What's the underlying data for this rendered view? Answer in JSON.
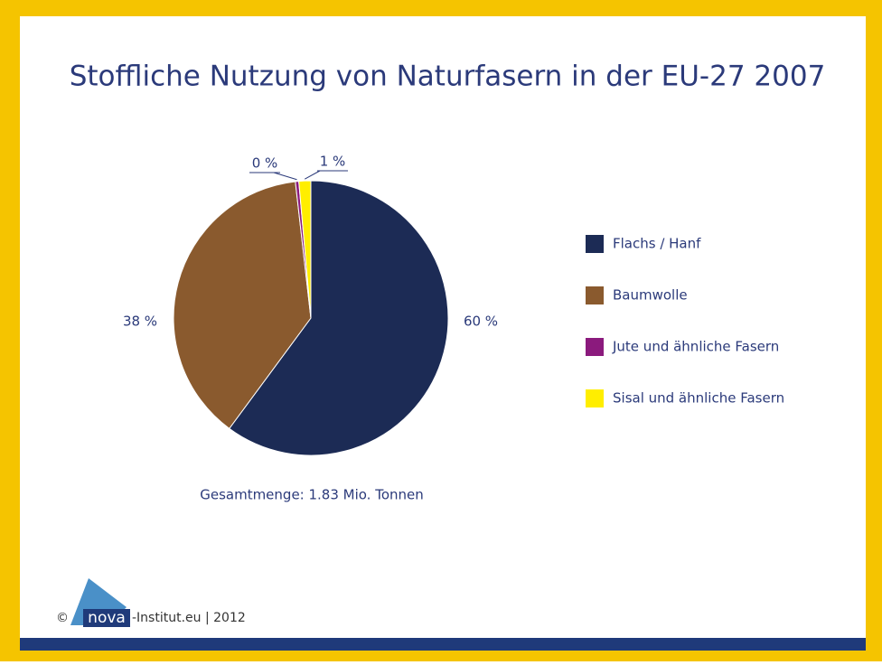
{
  "chart_data": {
    "type": "pie",
    "title": "Stoffliche Nutzung von Naturfasern in der EU-27 2007",
    "categories": [
      "Flachs / Hanf",
      "Baumwolle",
      "Jute und ähnliche Fasern",
      "Sisal und ähnliche Fasern"
    ],
    "values": [
      60,
      38,
      0.4,
      1.4
    ],
    "value_labels": [
      "60 %",
      "38 %",
      "0 %",
      "1 %"
    ],
    "colors": [
      "#1c2b55",
      "#8a5a2e",
      "#8b1a7d",
      "#ffee00"
    ],
    "annotation": "Gesamtmenge: 1.83 Mio. Tonnen"
  },
  "footer": {
    "copyright": "©",
    "logo": "nova",
    "text": "-Institut.eu | 2012"
  }
}
